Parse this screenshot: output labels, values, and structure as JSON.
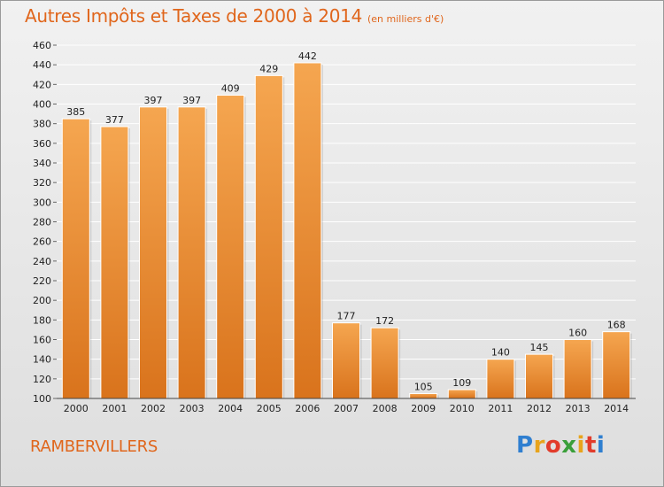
{
  "header": {
    "title": "Autres Impôts et Taxes de 2000 à 2014",
    "subtitle": "(en milliers d'€)"
  },
  "footer": {
    "commune": "RAMBERVILLERS",
    "logo_letters": [
      "P",
      "r",
      "o",
      "x",
      "i",
      "t",
      "i"
    ],
    "logo_colors": [
      "#2f7fd0",
      "#e8a41c",
      "#e23c2b",
      "#3a9f3a",
      "#e8a41c",
      "#e23c2b",
      "#2f7fd0"
    ]
  },
  "colors": {
    "bar_light": "#f5a650",
    "bar_dark": "#d9731c",
    "title": "#e0661c",
    "grid": "#ffffff",
    "axis_text": "#222222"
  },
  "chart_data": {
    "type": "bar",
    "categories": [
      "2000",
      "2001",
      "2002",
      "2003",
      "2004",
      "2005",
      "2006",
      "2007",
      "2008",
      "2009",
      "2010",
      "2011",
      "2012",
      "2013",
      "2014"
    ],
    "values": [
      385,
      377,
      397,
      397,
      409,
      429,
      442,
      177,
      172,
      105,
      109,
      140,
      145,
      160,
      168
    ],
    "title": "Autres Impôts et Taxes de 2000 à 2014",
    "subtitle": "(en milliers d'€)",
    "ylim": [
      100,
      460
    ],
    "yticks": [
      100,
      120,
      140,
      160,
      180,
      200,
      220,
      240,
      260,
      280,
      300,
      320,
      340,
      360,
      380,
      400,
      420,
      440,
      460
    ],
    "grid": true,
    "data_labels": true
  }
}
